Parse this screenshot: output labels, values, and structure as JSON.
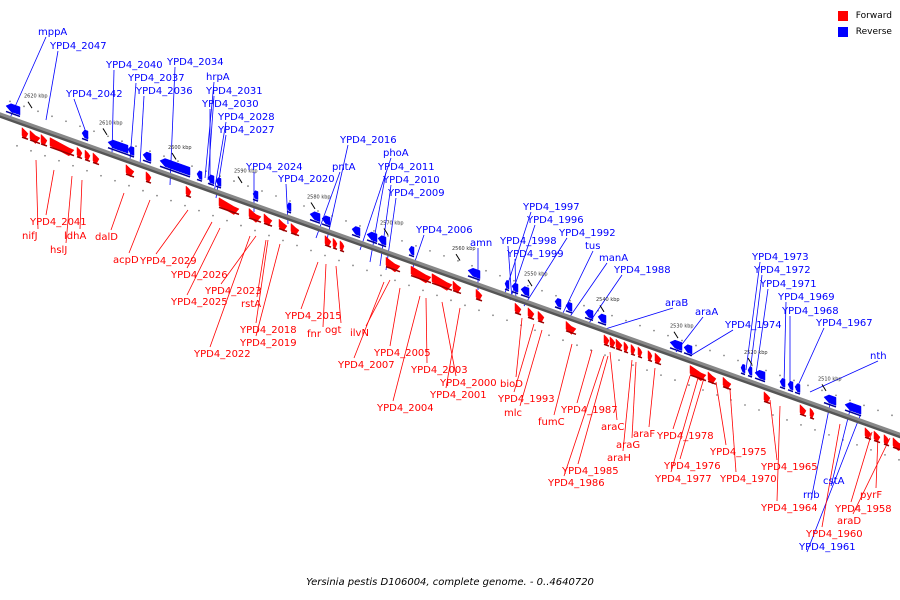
{
  "caption": "Yersinia pestis D106004, complete genome. - 0..4640720",
  "legend": [
    {
      "label": "Forward",
      "color": "#ff0000"
    },
    {
      "label": "Reverse",
      "color": "#0000ff"
    }
  ],
  "colors": {
    "forward": "#ff0000",
    "reverse": "#0000ff",
    "backbone": "#888888"
  },
  "ticks": [
    "2620 kbp",
    "2610 kbp",
    "2600 kbp",
    "2590 kbp",
    "2580 kbp",
    "2570 kbp",
    "2560 kbp",
    "2550 kbp",
    "2540 kbp",
    "2530 kbp",
    "2520 kbp",
    "2510 kbp"
  ],
  "reverse_labels": [
    "mppA",
    "YPD4_2047",
    "YPD4_2042",
    "YPD4_2040",
    "YPD4_2037",
    "YPD4_2036",
    "YPD4_2034",
    "hrpA",
    "YPD4_2031",
    "YPD4_2030",
    "YPD4_2028",
    "YPD4_2027",
    "YPD4_2024",
    "YPD4_2020",
    "pntA",
    "YPD4_2016",
    "phoA",
    "YPD4_2011",
    "YPD4_2010",
    "YPD4_2009",
    "YPD4_2006",
    "amn",
    "YPD4_1997",
    "YPD4_1996",
    "YPD4_1998",
    "YPD4_1999",
    "YPD4_1992",
    "tus",
    "manA",
    "YPD4_1988",
    "araB",
    "araA",
    "YPD4_1974",
    "YPD4_1973",
    "YPD4_1972",
    "YPD4_1971",
    "YPD4_1969",
    "YPD4_1968",
    "YPD4_1967",
    "nth",
    "rnb",
    "cstA",
    "YPD4_1961"
  ],
  "forward_labels": [
    "YPD4_2041",
    "nifJ",
    "ldhA",
    "hslJ",
    "dalD",
    "acpD",
    "YPD4_2029",
    "YPD4_2026",
    "YPD4_2023",
    "YPD4_2025",
    "rstA",
    "YPD4_2018",
    "YPD4_2019",
    "YPD4_2022",
    "YPD4_2015",
    "fnr",
    "ogt",
    "ilvN",
    "YPD4_2005",
    "YPD4_2007",
    "YPD4_2003",
    "YPD4_2000",
    "YPD4_2001",
    "YPD4_2004",
    "bioD",
    "YPD4_1993",
    "mlc",
    "fumC",
    "YPD4_1987",
    "araC",
    "araF",
    "araG",
    "araH",
    "YPD4_1985",
    "YPD4_1986",
    "YPD4_1978",
    "YPD4_1975",
    "YPD4_1976",
    "YPD4_1977",
    "YPD4_1970",
    "YPD4_1965",
    "YPD4_1964",
    "pyrF",
    "YPD4_1958",
    "araD",
    "YPD4_1960"
  ]
}
